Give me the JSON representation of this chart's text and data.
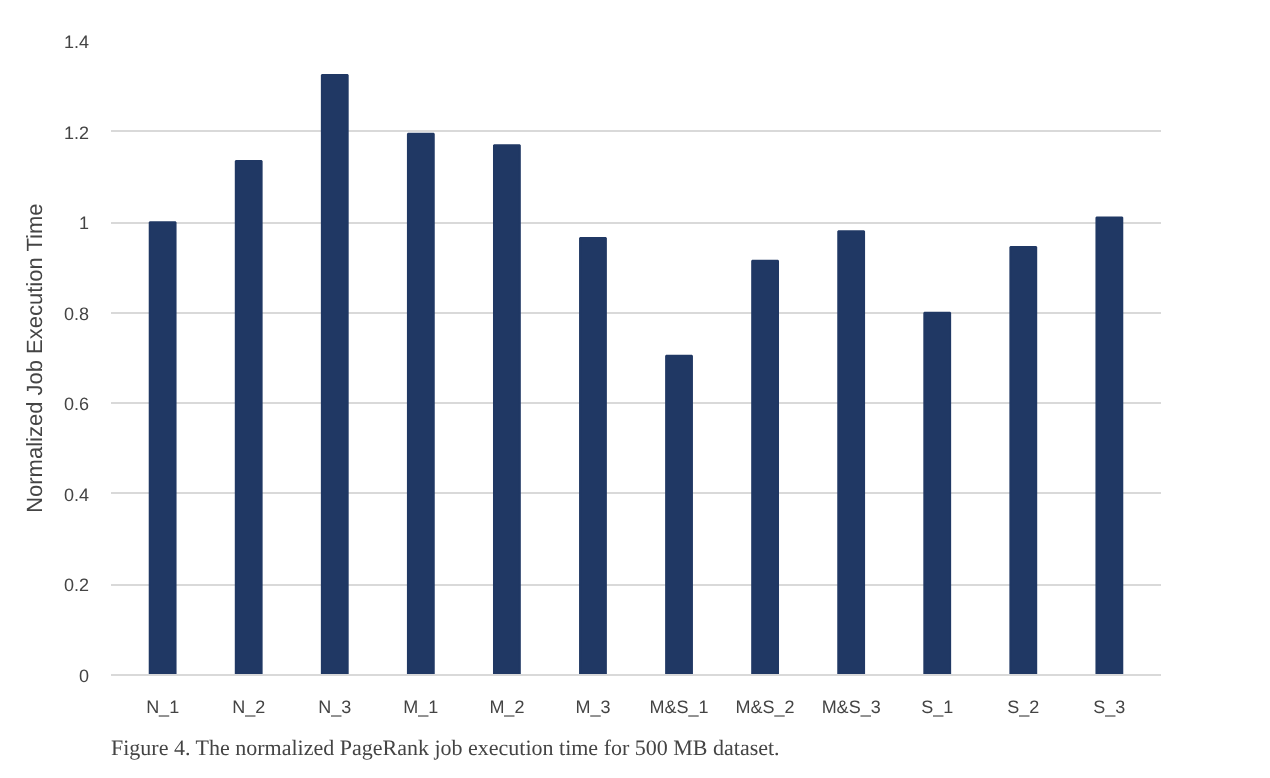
{
  "chart_data": {
    "type": "bar",
    "ylabel": "Normalized Job Execution Time",
    "categories": [
      "N_1",
      "N_2",
      "N_3",
      "M_1",
      "M_2",
      "M_3",
      "M&S_1",
      "M&S_2",
      "M&S_3",
      "S_1",
      "S_2",
      "S_3"
    ],
    "values": [
      1.0,
      1.135,
      1.325,
      1.195,
      1.17,
      0.965,
      0.705,
      0.915,
      0.98,
      0.8,
      0.945,
      1.01
    ],
    "color": "#203864",
    "ylim": [
      0,
      1.4
    ],
    "yticks": [
      0,
      0.2,
      0.4,
      0.6,
      0.8,
      1,
      1.2,
      1.4
    ],
    "grid": "y",
    "annotations": [
      "Figure 4. The normalized PageRank job execution time for 500 MB dataset."
    ]
  }
}
